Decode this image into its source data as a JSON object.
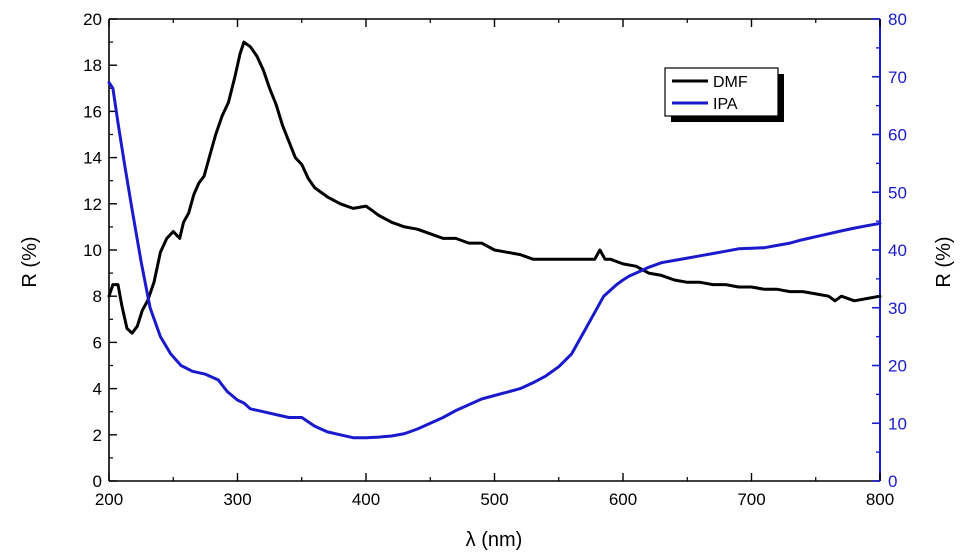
{
  "chart_data": {
    "type": "line",
    "title": "",
    "xlabel": "λ (nm)",
    "ylabel_left": "R (%)",
    "ylabel_right": "R (%)",
    "xlim": [
      200,
      800
    ],
    "ylim_left": [
      0,
      20
    ],
    "ylim_right": [
      0,
      80
    ],
    "x_ticks": [
      "200",
      "300",
      "400",
      "500",
      "600",
      "700",
      "800"
    ],
    "y_left_ticks": [
      "0",
      "2",
      "4",
      "6",
      "8",
      "10",
      "12",
      "14",
      "16",
      "18",
      "20"
    ],
    "y_right_ticks": [
      "0",
      "10",
      "20",
      "30",
      "40",
      "50",
      "60",
      "70",
      "80"
    ],
    "grid": false,
    "legend_position": "top-right",
    "colors": {
      "left_axis": "#000000",
      "right_axis": "#1a1acc"
    },
    "series": [
      {
        "name": "DMF",
        "axis": "left",
        "color": "#000000",
        "x": [
          200,
          203,
          207,
          210,
          214,
          218,
          222,
          226,
          230,
          235,
          240,
          245,
          250,
          255,
          258,
          262,
          266,
          270,
          274,
          278,
          283,
          288,
          293,
          298,
          302,
          305,
          310,
          315,
          320,
          325,
          330,
          335,
          340,
          345,
          350,
          355,
          360,
          370,
          380,
          390,
          400,
          405,
          410,
          420,
          430,
          440,
          450,
          460,
          470,
          480,
          490,
          500,
          510,
          520,
          530,
          540,
          550,
          560,
          570,
          578,
          582,
          586,
          590,
          600,
          610,
          620,
          630,
          640,
          650,
          660,
          670,
          680,
          690,
          700,
          710,
          720,
          730,
          740,
          750,
          760,
          765,
          770,
          780,
          790,
          800
        ],
        "y": [
          8.0,
          8.5,
          8.5,
          7.6,
          6.6,
          6.4,
          6.7,
          7.4,
          7.8,
          8.6,
          9.9,
          10.5,
          10.8,
          10.5,
          11.2,
          11.6,
          12.4,
          12.9,
          13.2,
          14.0,
          15.0,
          15.8,
          16.4,
          17.5,
          18.5,
          19.0,
          18.8,
          18.4,
          17.8,
          17.0,
          16.3,
          15.4,
          14.7,
          14.0,
          13.7,
          13.1,
          12.7,
          12.3,
          12.0,
          11.8,
          11.9,
          11.7,
          11.5,
          11.2,
          11.0,
          10.9,
          10.7,
          10.5,
          10.5,
          10.3,
          10.3,
          10.0,
          9.9,
          9.8,
          9.6,
          9.6,
          9.6,
          9.6,
          9.6,
          9.6,
          10.0,
          9.6,
          9.6,
          9.4,
          9.3,
          9.0,
          8.9,
          8.7,
          8.6,
          8.6,
          8.5,
          8.5,
          8.4,
          8.4,
          8.3,
          8.3,
          8.2,
          8.2,
          8.1,
          8.0,
          7.8,
          8.0,
          7.8,
          7.9,
          8.0
        ]
      },
      {
        "name": "IPA",
        "axis": "right",
        "color": "#1a1acc",
        "x": [
          200,
          203,
          207,
          212,
          218,
          225,
          232,
          240,
          248,
          256,
          265,
          275,
          285,
          292,
          300,
          305,
          310,
          320,
          330,
          340,
          350,
          360,
          370,
          380,
          390,
          400,
          410,
          420,
          430,
          440,
          450,
          460,
          470,
          480,
          490,
          500,
          510,
          520,
          530,
          540,
          550,
          560,
          570,
          575,
          580,
          585,
          590,
          595,
          600,
          605,
          610,
          615,
          620,
          630,
          640,
          650,
          660,
          670,
          680,
          690,
          700,
          710,
          720,
          730,
          740,
          750,
          760,
          770,
          780,
          790,
          800
        ],
        "y": [
          69,
          68,
          62,
          55,
          47,
          38,
          30,
          25,
          22,
          20,
          19,
          18.5,
          17.5,
          15.5,
          14,
          13.5,
          12.5,
          12,
          11.5,
          11,
          11,
          9.5,
          8.5,
          8,
          7.5,
          7.5,
          7.6,
          7.8,
          8.2,
          9,
          10,
          11,
          12.2,
          13.2,
          14.2,
          14.8,
          15.4,
          16,
          17,
          18.2,
          19.8,
          22,
          26,
          28,
          30,
          32,
          33,
          34,
          34.8,
          35.5,
          36,
          36.5,
          37,
          37.8,
          38.2,
          38.6,
          39,
          39.4,
          39.8,
          40.2,
          40.3,
          40.4,
          40.8,
          41.2,
          41.8,
          42.3,
          42.8,
          43.3,
          43.8,
          44.2,
          44.6
        ]
      }
    ]
  }
}
